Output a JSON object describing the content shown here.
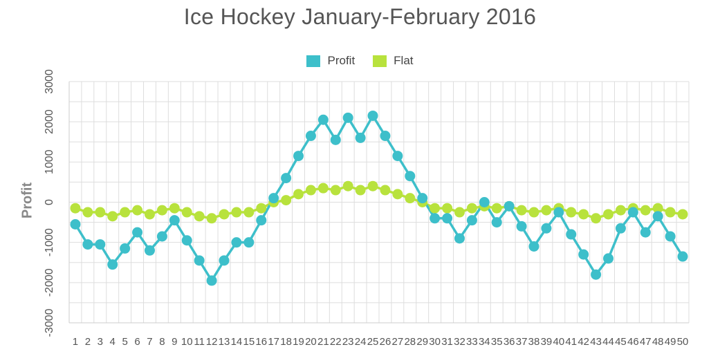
{
  "chart_data": {
    "type": "line",
    "title": "Ice Hockey January-February 2016",
    "ylabel": "Profit",
    "xlabel": "",
    "ylim": [
      -3000,
      3000
    ],
    "yticks": [
      3000,
      2000,
      1000,
      0,
      -1000,
      -2000,
      -3000
    ],
    "ytick_labels": [
      "3000",
      "2000",
      "1000",
      "0",
      "-1000",
      "-2000",
      "-3000"
    ],
    "grid": true,
    "legend": "top-center",
    "categories": [
      "1",
      "2",
      "3",
      "4",
      "5",
      "6",
      "7",
      "8",
      "9",
      "10",
      "11",
      "12",
      "13",
      "14",
      "15",
      "16",
      "17",
      "18",
      "19",
      "20",
      "21",
      "22",
      "23",
      "24",
      "25",
      "26",
      "27",
      "28",
      "29",
      "30",
      "31",
      "32",
      "33",
      "34",
      "35",
      "36",
      "37",
      "38",
      "39",
      "40",
      "41",
      "42",
      "43",
      "44",
      "45",
      "46",
      "47",
      "48",
      "49",
      "50"
    ],
    "series": [
      {
        "name": "Profit",
        "color": "#3dbfca",
        "values": [
          -550,
          -1050,
          -1050,
          -1550,
          -1150,
          -750,
          -1200,
          -850,
          -450,
          -950,
          -1450,
          -1950,
          -1450,
          -1000,
          -1000,
          -450,
          100,
          600,
          1150,
          1650,
          2050,
          1550,
          2100,
          1600,
          2150,
          1650,
          1150,
          650,
          100,
          -400,
          -400,
          -900,
          -450,
          0,
          -500,
          -100,
          -600,
          -1100,
          -650,
          -250,
          -800,
          -1300,
          -1800,
          -1400,
          -650,
          -250,
          -750,
          -350,
          -850,
          -1350
        ]
      },
      {
        "name": "Flat",
        "color": "#b8e23d",
        "values": [
          -150,
          -250,
          -250,
          -350,
          -250,
          -200,
          -300,
          -200,
          -150,
          -250,
          -350,
          -400,
          -300,
          -250,
          -250,
          -150,
          0,
          50,
          200,
          300,
          350,
          300,
          400,
          300,
          400,
          300,
          200,
          100,
          0,
          -150,
          -150,
          -250,
          -150,
          -100,
          -150,
          -100,
          -200,
          -250,
          -200,
          -150,
          -250,
          -300,
          -400,
          -300,
          -200,
          -150,
          -200,
          -150,
          -250,
          -300
        ]
      }
    ]
  }
}
